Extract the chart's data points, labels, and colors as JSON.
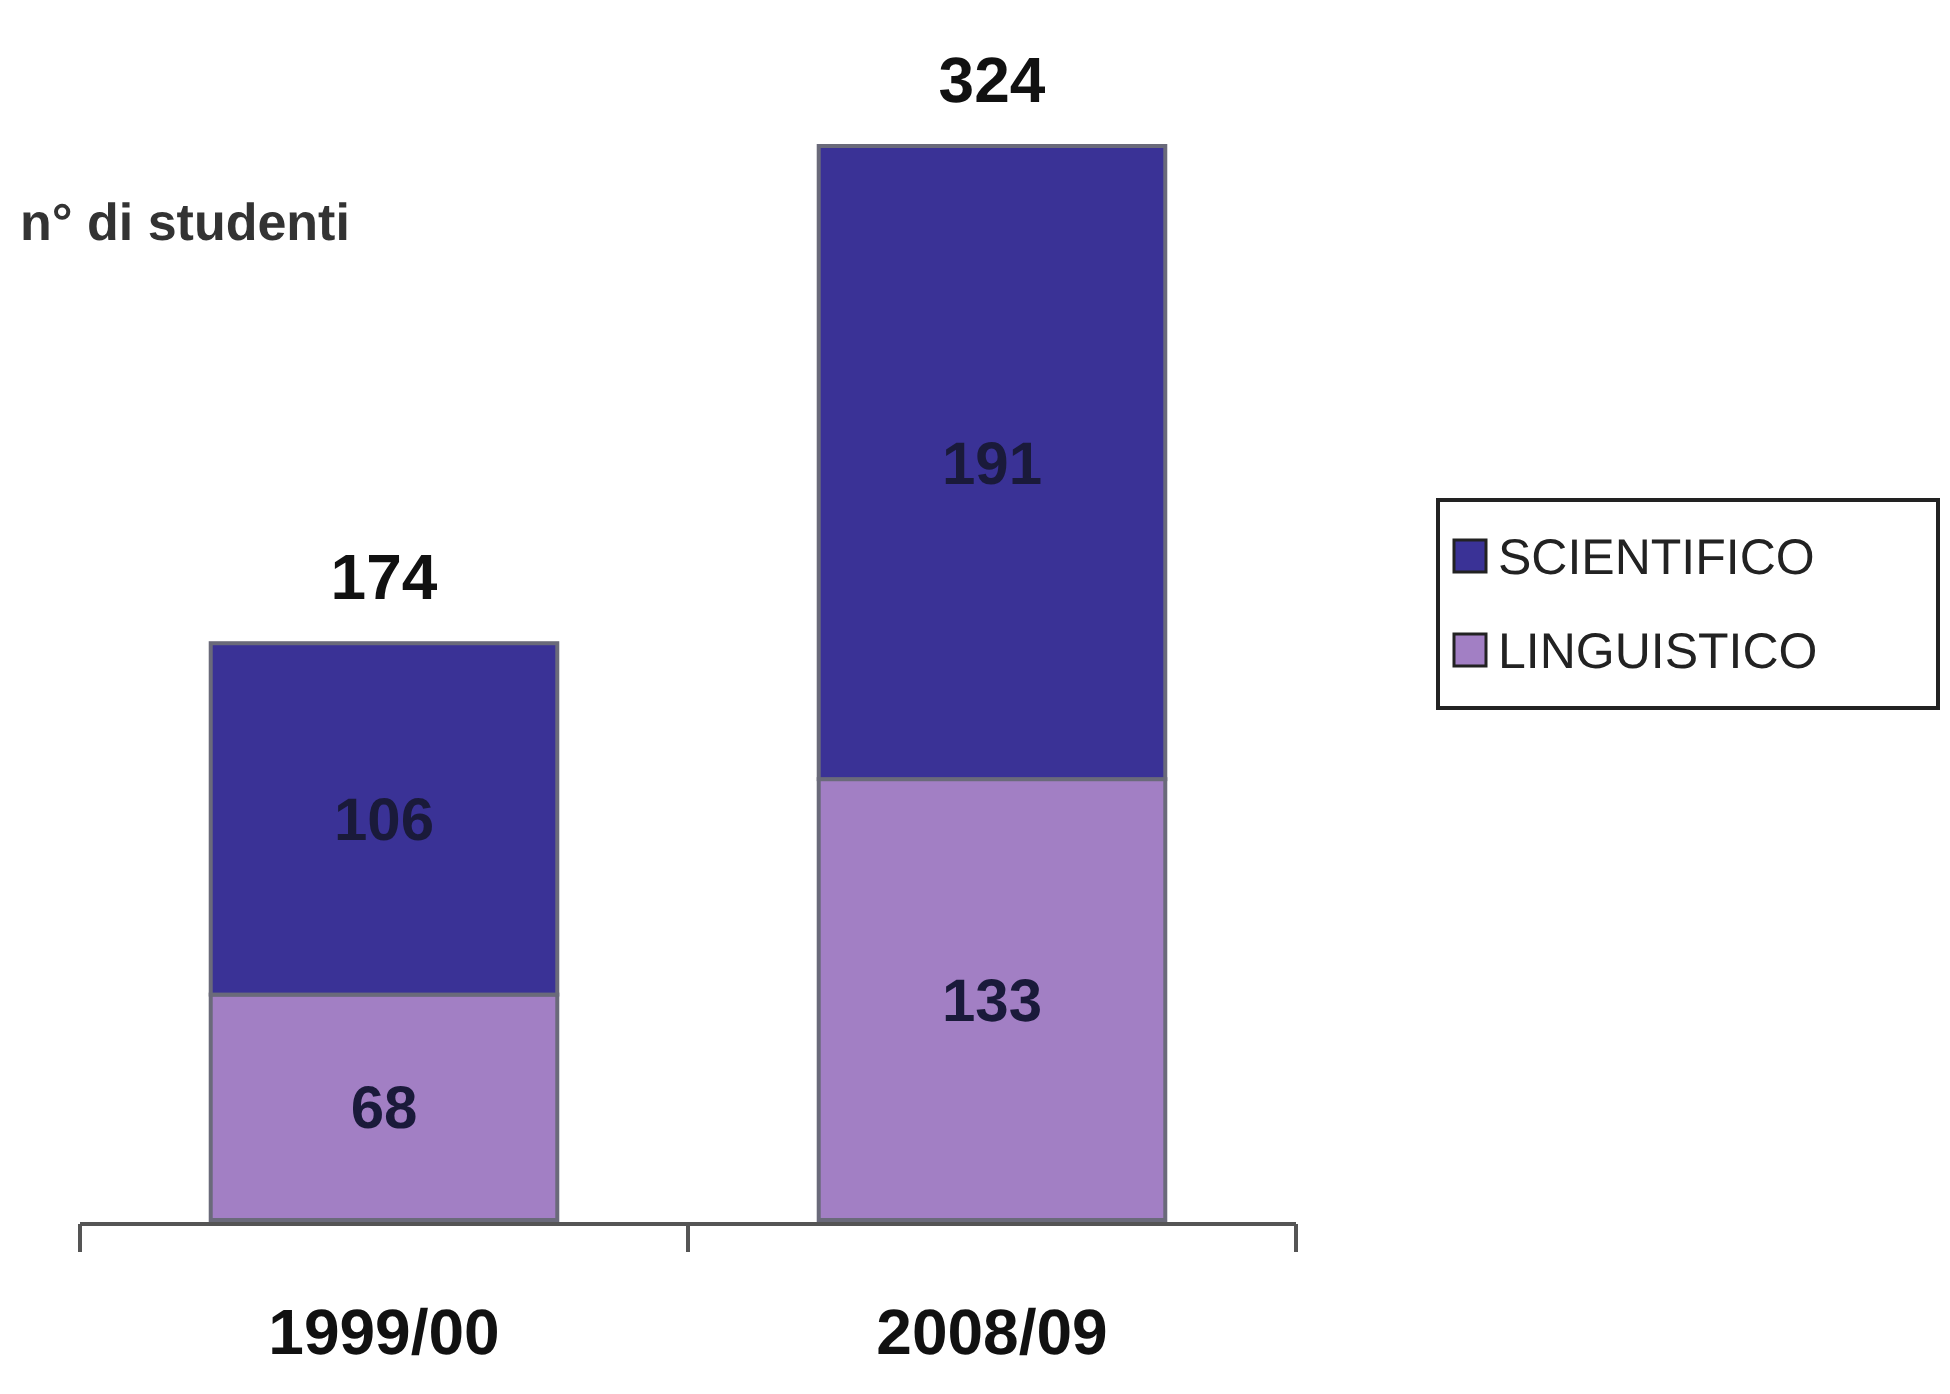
{
  "chart_data": {
    "type": "bar",
    "stacked": true,
    "ylabel": "n° di studenti",
    "categories": [
      "1999/00",
      "2008/09"
    ],
    "series": [
      {
        "name": "LINGUISTICO",
        "color": "#a27fc4",
        "values": [
          68,
          133
        ]
      },
      {
        "name": "SCIENTIFICO",
        "color": "#3a3296",
        "values": [
          106,
          191
        ]
      }
    ],
    "data_labels": true,
    "totals": [
      "174",
      "324"
    ],
    "legend": "right"
  }
}
